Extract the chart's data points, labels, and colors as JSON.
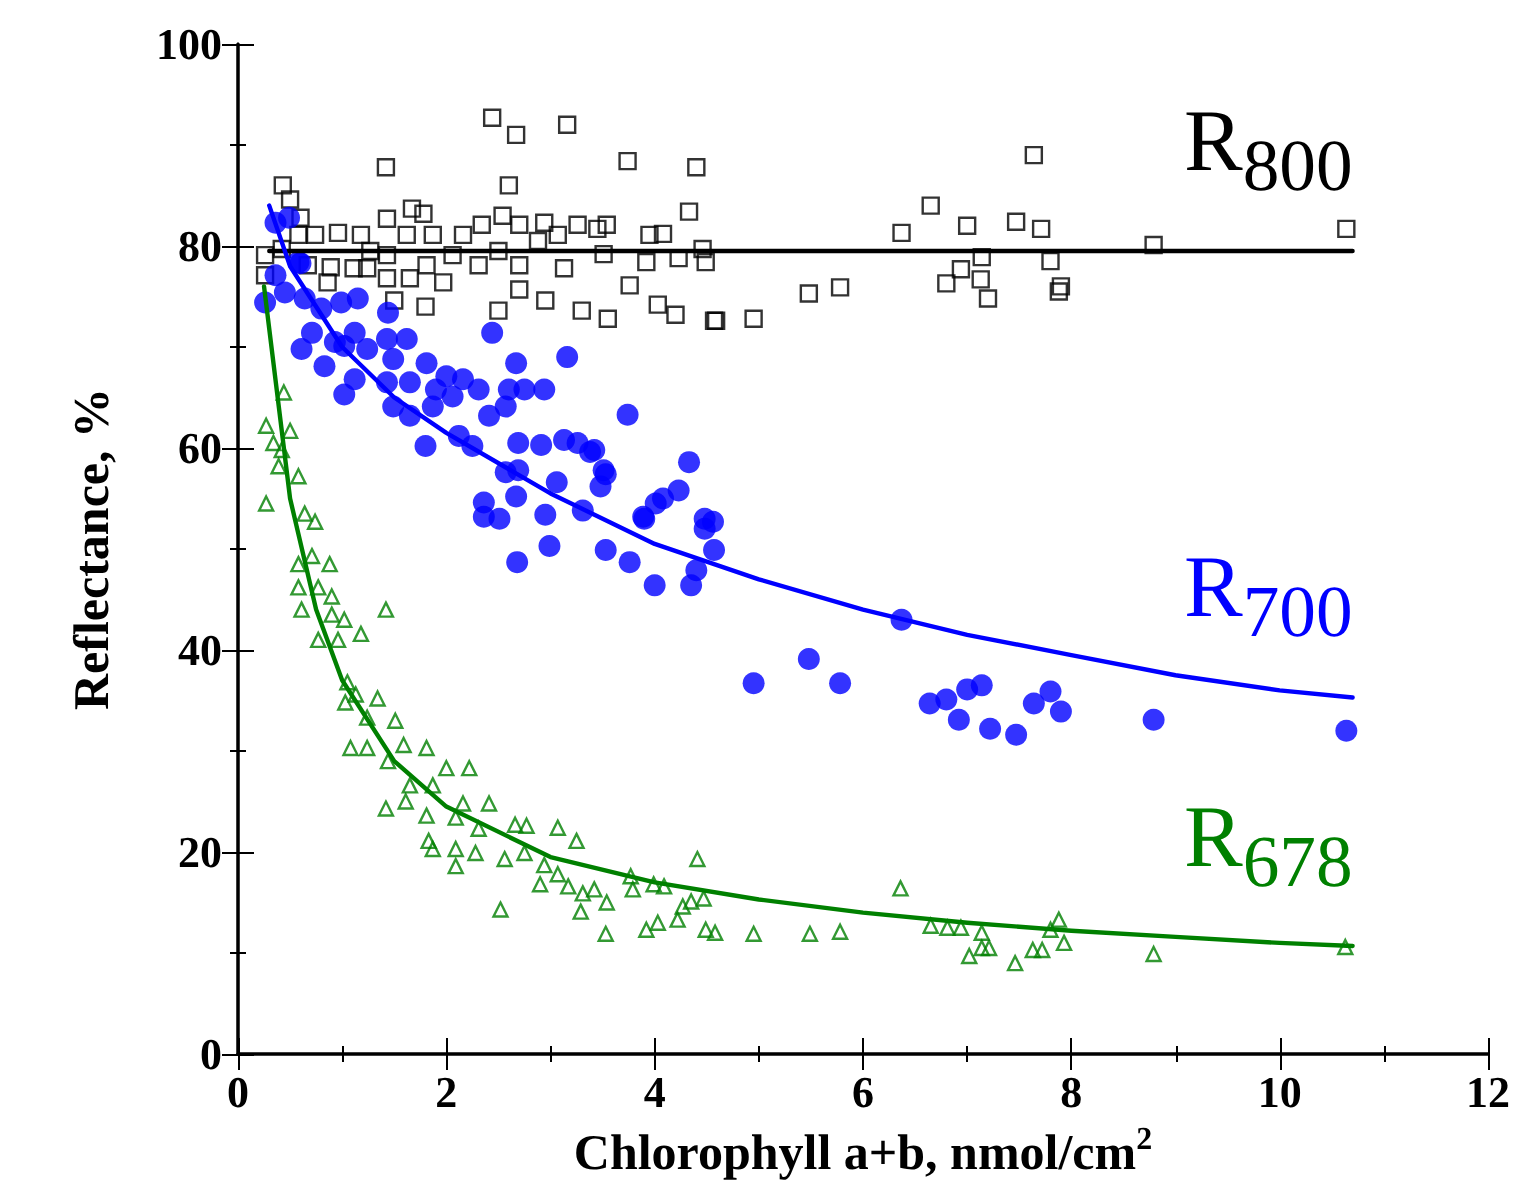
{
  "chart_data": {
    "type": "scatter",
    "xlabel": "Chlorophyll a+b, nmol/cm$^{2}$",
    "ylabel": "Reflectance, %",
    "xlim": [
      0,
      12
    ],
    "xticks": [
      0,
      2,
      4,
      6,
      8,
      10,
      12
    ],
    "ylim": [
      0,
      100
    ],
    "yticks": [
      0,
      20,
      40,
      60,
      80,
      100
    ],
    "grid": false,
    "legend": false,
    "series": [
      {
        "name": "R$_{800}$",
        "marker": "square",
        "color": "#000000",
        "x": [
          2.44,
          2.67,
          3.16,
          1.42,
          3.74,
          4.4,
          2.6,
          0.43,
          0.5,
          0.6,
          1.8,
          2.5,
          3.3,
          3.55,
          4.2,
          4.57,
          4.03,
          2.95,
          2.7,
          3.76,
          1.5,
          7.64,
          6.65,
          6.37,
          7.0,
          7.47,
          7.71,
          8.79,
          10.64,
          7.14,
          7.8,
          6.94,
          6.8,
          7.13,
          7.2,
          7.88,
          7.9,
          5.48,
          5.78,
          4.95,
          4.59,
          0.26,
          0.26,
          0.58,
          0.74,
          0.96,
          1.18,
          0.89,
          1.11,
          1.24,
          1.43,
          1.43,
          1.62,
          1.67,
          1.43,
          1.78,
          1.87,
          1.65,
          1.97,
          2.06,
          2.16,
          2.34,
          2.31,
          2.54,
          2.7,
          2.7,
          2.88,
          2.94,
          3.07,
          3.13,
          3.26,
          3.45,
          3.54,
          3.51,
          3.92,
          3.95,
          4.08,
          4.23,
          4.33,
          4.49,
          4.46,
          0.86,
          0.67,
          0.42,
          1.27,
          1.81,
          2.5
        ],
        "values": [
          92.7,
          91,
          92,
          87.8,
          88.4,
          87.8,
          86,
          86,
          84.6,
          82.8,
          74,
          73.6,
          73.6,
          72.8,
          73.2,
          72.6,
          74.2,
          74.6,
          75.7,
          76.1,
          74.6,
          89,
          84,
          81.3,
          82,
          82.4,
          81.7,
          80.1,
          81.7,
          78.9,
          78.5,
          77.7,
          76.3,
          76.7,
          74.8,
          75.5,
          76,
          75.3,
          75.9,
          72.8,
          72.6,
          79.1,
          77.1,
          81.1,
          81.1,
          81.3,
          81.1,
          77.9,
          77.8,
          77.8,
          79.1,
          76.8,
          81.1,
          83.7,
          82.7,
          83.2,
          81.1,
          76.8,
          76.4,
          79.1,
          81.1,
          82.1,
          78.1,
          83,
          82.1,
          78.1,
          80.5,
          82.3,
          81.1,
          77.8,
          82.1,
          81.7,
          82.1,
          79.2,
          78.4,
          81.1,
          81.2,
          78.8,
          83.4,
          78.4,
          79.7,
          76.4,
          78.1,
          79.7,
          79.5,
          78.1,
          79.5
        ]
      },
      {
        "type": "line",
        "marker": "none",
        "color": "#000000",
        "x": [
          0.3,
          10.7
        ],
        "values": [
          79.5,
          79.5
        ]
      },
      {
        "name": "R$_{700}$",
        "marker": "circle",
        "color": "#0000ff",
        "x": [
          0.49,
          0.26,
          0.6,
          1.44,
          2.44,
          3.16,
          2.67,
          3.74,
          4.33,
          1.8,
          1.02,
          2.68,
          2.99,
          3.53,
          3.76,
          4.0,
          4.35,
          4.4,
          4.57,
          2.36,
          2.36,
          2.51,
          2.67,
          2.95,
          3.31,
          3.9,
          4.08,
          4.23,
          4.48,
          4.48,
          2.57,
          2.91,
          3.06,
          3.38,
          3.53,
          6.37,
          5.48,
          4.95,
          5.78,
          6.64,
          6.8,
          6.92,
          7.0,
          7.14,
          7.22,
          7.47,
          7.64,
          7.8,
          7.9,
          8.79,
          10.64,
          4.56,
          0.36,
          0.58,
          0.36,
          0.45,
          0.64,
          0.8,
          0.99,
          1.15,
          0.71,
          0.61,
          0.93,
          1.12,
          0.83,
          1.02,
          1.24,
          1.43,
          1.62,
          1.49,
          1.81,
          1.65,
          1.9,
          2.0,
          2.16,
          2.31,
          1.12,
          1.43,
          1.49,
          1.65,
          1.87,
          2.06,
          2.6,
          2.75,
          2.94,
          2.57,
          2.41,
          2.12,
          2.25,
          2.69,
          3.13,
          3.26,
          3.42,
          3.51,
          2.69,
          3.48,
          3.89,
          4.01
        ],
        "values": [
          82.8,
          74.4,
          78.3,
          73.4,
          71.4,
          69,
          68.4,
          63.3,
          58.6,
          60.2,
          65.3,
          48.7,
          50.3,
          49.9,
          48.7,
          46.4,
          46.4,
          47.9,
          49.9,
          54.6,
          53.2,
          53,
          55.2,
          53.4,
          53.8,
          53,
          55,
          55.8,
          53,
          52,
          57.6,
          60.3,
          56.6,
          59.6,
          57.4,
          43,
          39.1,
          36.7,
          36.7,
          34.7,
          35.1,
          33.1,
          36.1,
          36.5,
          32.2,
          31.6,
          34.7,
          35.9,
          33.9,
          33.1,
          32,
          52.7,
          82.3,
          78.4,
          77.1,
          75.4,
          74.8,
          73.8,
          74.4,
          74.8,
          71.4,
          69.8,
          70.5,
          71.4,
          68.1,
          70.1,
          69.8,
          70.8,
          70.8,
          68.8,
          68.4,
          66.5,
          65.8,
          67.1,
          66.8,
          65.8,
          66.8,
          66.5,
          64.1,
          63.2,
          64.1,
          65.1,
          65.8,
          65.8,
          65.8,
          64.1,
          63.2,
          61.2,
          60.2,
          60.5,
          60.8,
          60.5,
          59.8,
          57.8,
          57.8,
          56.2,
          53.2,
          54.5
        ]
      },
      {
        "type": "line",
        "marker": "none",
        "color": "#0000ff",
        "x": [
          0.3,
          0.5,
          1,
          1.5,
          2,
          3,
          4,
          5,
          6,
          7,
          8,
          9,
          10,
          10.7
        ],
        "values": [
          84,
          78,
          70,
          65,
          61.5,
          55.5,
          50.5,
          47,
          44,
          41.5,
          39.5,
          37.5,
          36,
          35.3
        ]
      },
      {
        "name": "R$_{678}$",
        "marker": "triangle",
        "color": "#008000",
        "x": [
          0.44,
          0.27,
          0.5,
          0.34,
          0.42,
          0.27,
          0.39,
          0.58,
          0.64,
          0.74,
          0.58,
          0.71,
          0.88,
          0.58,
          0.77,
          0.61,
          0.9,
          0.9,
          1.42,
          1.02,
          0.77,
          0.96,
          1.18,
          1.05,
          1.13,
          1.03,
          1.34,
          1.24,
          1.51,
          1.08,
          1.24,
          1.59,
          1.44,
          1.81,
          2.0,
          2.22,
          1.65,
          1.87,
          1.42,
          1.61,
          2.16,
          2.41,
          1.81,
          2.09,
          2.31,
          2.66,
          2.77,
          3.07,
          3.25,
          1.83,
          1.87,
          2.09,
          2.28,
          2.09,
          2.56,
          2.75,
          2.94,
          3.07,
          3.17,
          3.31,
          3.29,
          2.52,
          2.9,
          3.42,
          3.54,
          3.53,
          3.77,
          3.79,
          3.99,
          4.09,
          3.92,
          4.03,
          4.22,
          4.27,
          4.35,
          4.47,
          4.41,
          4.49,
          4.58,
          4.95,
          5.49,
          5.78,
          6.36,
          6.65,
          6.81,
          6.94,
          7.14,
          7.02,
          7.14,
          7.21,
          7.46,
          7.63,
          7.72,
          7.8,
          7.88,
          7.93,
          8.79,
          10.63
        ],
        "values": [
          65.5,
          62.2,
          61.7,
          60.5,
          59.8,
          54.5,
          58.2,
          57.2,
          53.5,
          52.7,
          48.5,
          49.3,
          48.5,
          46.2,
          46.2,
          44,
          45.3,
          43.5,
          44,
          43,
          41,
          41,
          41.6,
          36.8,
          35.6,
          34.8,
          35.2,
          33.3,
          33,
          30.3,
          30.3,
          30.6,
          29,
          30.3,
          28.3,
          28.3,
          26.6,
          26.6,
          24.3,
          25,
          24.8,
          24.8,
          23.6,
          23.4,
          22.3,
          22.7,
          22.6,
          22.4,
          21.1,
          21.1,
          20.3,
          20.3,
          19.9,
          18.6,
          19.3,
          19.9,
          18.7,
          17.8,
          16.6,
          15.9,
          14.1,
          14.3,
          16.8,
          16.3,
          15,
          11.9,
          17.6,
          16.3,
          16.8,
          16.6,
          12.3,
          13,
          13.3,
          14.6,
          15.1,
          15.4,
          19.3,
          12.3,
          12,
          11.9,
          11.9,
          12.1,
          16.4,
          12.7,
          12.5,
          12.5,
          12,
          9.7,
          10.5,
          10.5,
          9,
          10.3,
          10.3,
          12.3,
          13.3,
          11,
          9.9,
          10.6
        ]
      },
      {
        "type": "line",
        "marker": "none",
        "color": "#008000",
        "x": [
          0.25,
          0.5,
          0.75,
          1,
          1.5,
          2,
          3,
          4,
          5,
          6,
          7,
          8,
          9,
          10,
          10.7
        ],
        "values": [
          76,
          55,
          44,
          37,
          29,
          24.5,
          19.5,
          17,
          15.3,
          14,
          13,
          12.2,
          11.6,
          11,
          10.7
        ]
      }
    ]
  }
}
